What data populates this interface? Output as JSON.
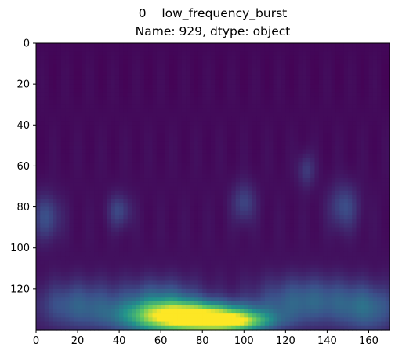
{
  "chart_data": {
    "type": "heatmap",
    "title_lines": [
      "0    low_frequency_burst",
      "Name: 929, dtype: object"
    ],
    "xlabel": "",
    "ylabel": "",
    "xlim": [
      0,
      170
    ],
    "ylim": [
      140,
      0
    ],
    "x_ticks": [
      0,
      20,
      40,
      60,
      80,
      100,
      120,
      140,
      160
    ],
    "y_ticks": [
      0,
      20,
      40,
      60,
      80,
      100,
      120
    ],
    "colormap": "viridis",
    "colormap_stops": [
      "#440154",
      "#3b528b",
      "#21918c",
      "#5ec962",
      "#fde725"
    ],
    "grid": false,
    "hotspots": [
      {
        "x": 75,
        "y": 134,
        "sx": 20,
        "sy": 5,
        "amp": 1.0
      },
      {
        "x": 95,
        "y": 136,
        "sx": 12,
        "sy": 3,
        "amp": 0.55
      },
      {
        "x": 60,
        "y": 128,
        "sx": 14,
        "sy": 8,
        "amp": 0.35
      },
      {
        "x": 130,
        "y": 126,
        "sx": 18,
        "sy": 8,
        "amp": 0.28
      },
      {
        "x": 20,
        "y": 128,
        "sx": 14,
        "sy": 8,
        "amp": 0.25
      },
      {
        "x": 160,
        "y": 130,
        "sx": 10,
        "sy": 8,
        "amp": 0.25
      },
      {
        "x": 5,
        "y": 85,
        "sx": 5,
        "sy": 8,
        "amp": 0.2
      },
      {
        "x": 40,
        "y": 82,
        "sx": 4,
        "sy": 6,
        "amp": 0.18
      },
      {
        "x": 100,
        "y": 78,
        "sx": 4,
        "sy": 7,
        "amp": 0.18
      },
      {
        "x": 148,
        "y": 80,
        "sx": 5,
        "sy": 8,
        "amp": 0.2
      },
      {
        "x": 130,
        "y": 62,
        "sx": 3,
        "sy": 6,
        "amp": 0.15
      }
    ]
  }
}
